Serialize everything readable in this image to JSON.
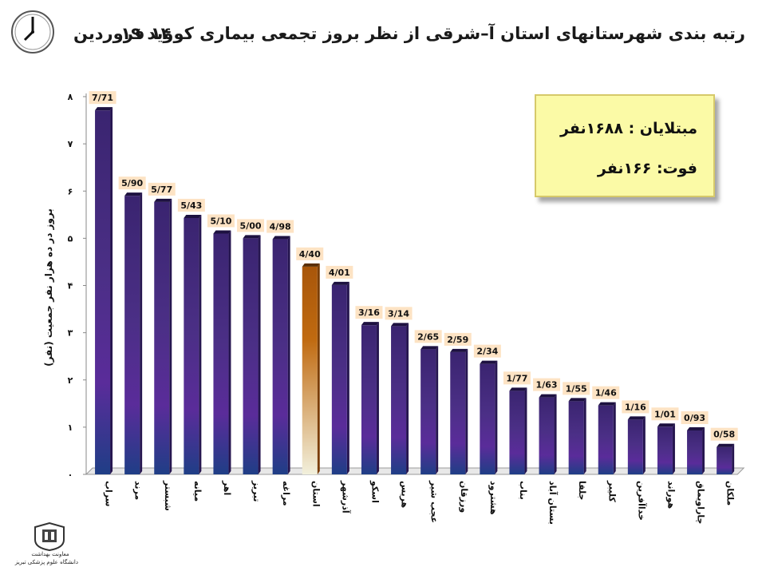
{
  "header": {
    "title": "رتبه بندی شهرستانهای استان آ–شرقی  از نظر بروز تجمعی بیماری کووید ۱۹",
    "date": "۱۴ فروردین"
  },
  "info_box": {
    "cases_line": "مبتلایان : ۱۶۸۸نفر",
    "deaths_line": "فوت:  ۱۶۶نفر"
  },
  "footer": {
    "org_line1": "معاونت بهداشت",
    "org_line2": "دانشگاه علوم پزشکی تبریز"
  },
  "colors": {
    "bar_main": "#4b2f86",
    "bar_highlight": "#c06a10",
    "value_label_bg": "#fde3c4"
  },
  "chart_data": {
    "type": "bar",
    "ylabel": "بروز در ده هزار نفر جمعیت (نفر)",
    "ylim": [
      0,
      8
    ],
    "yticks": [
      "۰",
      "۱",
      "۲",
      "۳",
      "۴",
      "۵",
      "۶",
      "۷",
      "۸"
    ],
    "grid": false,
    "categories": [
      "سراب",
      "مرند",
      "شبستر",
      "میانه",
      "اهر",
      "تبریز",
      "مراغه",
      "استان",
      "آذرشهر",
      "اسکو",
      "هریس",
      "عجب شیر",
      "ورزقان",
      "هشترود",
      "بناب",
      "بستان آباد",
      "جلفا",
      "کلیبر",
      "خداآفرین",
      "هوراند",
      "چاراویماق",
      "ملکان"
    ],
    "values": [
      7.71,
      5.9,
      5.77,
      5.43,
      5.1,
      5.0,
      4.98,
      4.4,
      4.01,
      3.16,
      3.14,
      2.65,
      2.59,
      2.34,
      1.77,
      1.63,
      1.55,
      1.46,
      1.16,
      1.01,
      0.93,
      0.58
    ],
    "value_labels": [
      "7/71",
      "5/90",
      "5/77",
      "5/43",
      "5/10",
      "5/00",
      "4/98",
      "4/40",
      "4/01",
      "3/16",
      "3/14",
      "2/65",
      "2/59",
      "2/34",
      "1/77",
      "1/63",
      "1/55",
      "1/46",
      "1/16",
      "1/01",
      "0/93",
      "0/58"
    ],
    "highlight": "استان"
  }
}
